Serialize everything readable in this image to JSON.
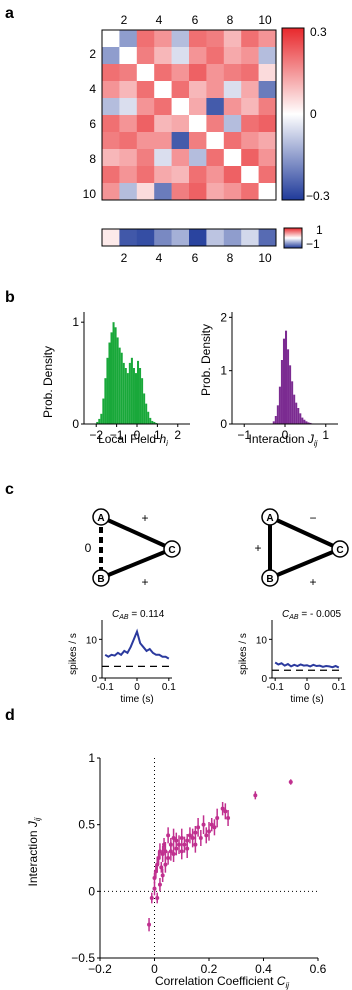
{
  "panels": {
    "a": {
      "label": "a",
      "matrix_col_ticks": [
        "2",
        "4",
        "6",
        "8",
        "10"
      ],
      "matrix_row_ticks": [
        "2",
        "4",
        "6",
        "8",
        "10"
      ],
      "colorbar_ticks": [
        "0.3",
        "0",
        "−0.3"
      ],
      "vector_ticks": [
        "2",
        "4",
        "6",
        "8",
        "10"
      ],
      "small_colorbar_ticks": [
        "1",
        "−1"
      ],
      "colors": {
        "pos": "#e8282c",
        "neg": "#1f3a9a",
        "mid": "#ffffff"
      }
    },
    "b": {
      "label": "b",
      "left": {
        "ylabel": "Prob. Density",
        "xlabel_main": "Local Field ",
        "xlabel_var": "h",
        "xlabel_sub": "i",
        "xticks": [
          "−2",
          "−1",
          "0",
          "1",
          "2"
        ],
        "yticks": [
          "1",
          "0"
        ],
        "color": "#19a83a"
      },
      "right": {
        "ylabel": "Prob. Density",
        "xlabel_main": "Interaction ",
        "xlabel_var": "J",
        "xlabel_sub": "ij",
        "xticks": [
          "−1",
          "0",
          "1"
        ],
        "yticks": [
          "2",
          "1",
          "0"
        ],
        "color": "#7b2b91"
      }
    },
    "c": {
      "label": "c",
      "left": {
        "node_a": "A",
        "node_b": "B",
        "node_c": "C",
        "ab_sign": "0",
        "ac_sign": "+",
        "bc_sign": "+",
        "annot_var": "C",
        "annot_sub": "AB",
        "annot_value": " = 0.114",
        "ylabel": "spikes / s",
        "xlabel": "time (s)",
        "xticks": [
          "-0.1",
          "0",
          "0.1"
        ],
        "yticks": [
          "10",
          "0"
        ]
      },
      "right": {
        "node_a": "A",
        "node_b": "B",
        "node_c": "C",
        "ab_sign": "+",
        "ac_sign": "−",
        "bc_sign": "+",
        "annot_var": "C",
        "annot_sub": "AB",
        "annot_value": " = - 0.005",
        "ylabel": "spikes / s",
        "xlabel": "time (s)",
        "xticks": [
          "-0.1",
          "0",
          "0.1"
        ],
        "yticks": [
          "10",
          "0"
        ]
      },
      "trace_color": "#2b3a9e"
    },
    "d": {
      "label": "d",
      "ylabel_main": "Interaction ",
      "ylabel_var": "J",
      "ylabel_sub": "ij",
      "xlabel_main": "Correlation Coefficient ",
      "xlabel_var": "C",
      "xlabel_sub": "ij",
      "xticks": [
        "−0.2",
        "0",
        "0.2",
        "0.4",
        "0.6"
      ],
      "yticks": [
        "1",
        "0.5",
        "0",
        "−0.5"
      ],
      "color": "#c0308f"
    }
  },
  "chart_data": [
    {
      "type": "heatmap",
      "panel": "a",
      "rows": 10,
      "cols": 10,
      "vmin": -0.3,
      "vmax": 0.3,
      "values": [
        [
          0,
          -0.15,
          0.2,
          0.15,
          -0.1,
          0.2,
          0.18,
          0.1,
          0.2,
          0.15
        ],
        [
          -0.15,
          0,
          0.18,
          0.1,
          -0.05,
          0.15,
          0.2,
          0.12,
          0.15,
          -0.1
        ],
        [
          0.2,
          0.18,
          0,
          0.2,
          0.15,
          0.22,
          0.15,
          0.18,
          0.2,
          0.05
        ],
        [
          0.15,
          0.1,
          0.2,
          0,
          0.2,
          0.1,
          0.15,
          -0.05,
          0.12,
          -0.2
        ],
        [
          -0.1,
          -0.05,
          0.15,
          0.2,
          0,
          0.12,
          -0.25,
          0.15,
          0.1,
          0.18
        ],
        [
          0.2,
          0.15,
          0.22,
          0.1,
          0.12,
          0,
          0.18,
          -0.1,
          0.2,
          0.22
        ],
        [
          0.18,
          0.2,
          0.15,
          0.15,
          -0.25,
          0.18,
          0,
          0.2,
          0.15,
          0.12
        ],
        [
          0.1,
          0.12,
          0.18,
          -0.05,
          0.15,
          -0.1,
          0.2,
          0,
          0.22,
          0.15
        ],
        [
          0.2,
          0.15,
          0.2,
          0.12,
          0.1,
          0.2,
          0.15,
          0.22,
          0,
          0.2
        ],
        [
          0.15,
          -0.1,
          0.05,
          -0.2,
          0.18,
          0.22,
          0.12,
          0.15,
          0.2,
          0
        ]
      ]
    },
    {
      "type": "heatmap",
      "panel": "a-vector",
      "rows": 1,
      "cols": 10,
      "vmin": -1,
      "vmax": 1,
      "values": [
        0.1,
        -0.85,
        -0.9,
        -0.6,
        -0.4,
        -0.95,
        -0.3,
        -0.5,
        -0.2,
        -0.75
      ]
    },
    {
      "type": "bar",
      "panel": "b-left",
      "xlim": [
        -2.6,
        2.6
      ],
      "ylim": [
        0,
        1.1
      ],
      "binwidth": 0.1,
      "x0": -2.0,
      "values": [
        0.02,
        0.05,
        0.1,
        0.25,
        0.45,
        0.65,
        0.8,
        0.9,
        1.0,
        0.95,
        0.85,
        0.75,
        0.7,
        0.6,
        0.55,
        0.5,
        0.6,
        0.65,
        0.55,
        0.5,
        0.62,
        0.55,
        0.45,
        0.3,
        0.2,
        0.12,
        0.06,
        0.03,
        0.02,
        0.01
      ]
    },
    {
      "type": "bar",
      "panel": "b-right",
      "xlim": [
        -1.3,
        1.3
      ],
      "ylim": [
        0,
        2.1
      ],
      "binwidth": 0.05,
      "x0": -0.3,
      "values": [
        0.05,
        0.15,
        0.35,
        0.7,
        1.2,
        1.6,
        1.75,
        1.4,
        1.1,
        0.8,
        0.55,
        0.4,
        0.3,
        0.2,
        0.12,
        0.08,
        0.05,
        0.03,
        0.02,
        0.01
      ]
    },
    {
      "type": "line",
      "panel": "c-left",
      "xlim": [
        -0.11,
        0.11
      ],
      "ylim": [
        0,
        15
      ],
      "baseline": 3,
      "x": [
        -0.1,
        -0.09,
        -0.08,
        -0.07,
        -0.06,
        -0.05,
        -0.04,
        -0.03,
        -0.02,
        -0.01,
        0,
        0.01,
        0.02,
        0.03,
        0.04,
        0.05,
        0.06,
        0.07,
        0.08,
        0.09,
        0.1
      ],
      "y": [
        6,
        5.5,
        6,
        5.8,
        6.5,
        6,
        7,
        6.5,
        8,
        10,
        12,
        9,
        8,
        7,
        7.5,
        6.5,
        6,
        6,
        5.5,
        5.5,
        5
      ]
    },
    {
      "type": "line",
      "panel": "c-right",
      "xlim": [
        -0.11,
        0.11
      ],
      "ylim": [
        0,
        15
      ],
      "baseline": 2,
      "x": [
        -0.1,
        -0.09,
        -0.08,
        -0.07,
        -0.06,
        -0.05,
        -0.04,
        -0.03,
        -0.02,
        -0.01,
        0,
        0.01,
        0.02,
        0.03,
        0.04,
        0.05,
        0.06,
        0.07,
        0.08,
        0.09,
        0.1
      ],
      "y": [
        4,
        3.5,
        3.8,
        3.2,
        3.6,
        3,
        3.4,
        3.1,
        3.5,
        3.2,
        3.3,
        3,
        3.4,
        3.1,
        3.2,
        2.9,
        3.1,
        3,
        2.8,
        3.1,
        2.7
      ]
    },
    {
      "type": "scatter",
      "panel": "d",
      "xlim": [
        -0.2,
        0.6
      ],
      "ylim": [
        -0.5,
        1
      ],
      "x": [
        -0.02,
        -0.01,
        0,
        0,
        0.005,
        0.01,
        0.01,
        0.015,
        0.02,
        0.02,
        0.025,
        0.03,
        0.03,
        0.035,
        0.04,
        0.04,
        0.05,
        0.05,
        0.06,
        0.06,
        0.07,
        0.07,
        0.08,
        0.08,
        0.09,
        0.1,
        0.1,
        0.11,
        0.12,
        0.12,
        0.13,
        0.14,
        0.15,
        0.15,
        0.16,
        0.17,
        0.18,
        0.19,
        0.2,
        0.21,
        0.22,
        0.23,
        0.25,
        0.26,
        0.27,
        0.37,
        0.5
      ],
      "y": [
        -0.25,
        -0.05,
        0.02,
        0.1,
        0.15,
        -0.05,
        0.2,
        0.25,
        0.05,
        0.3,
        0.18,
        0.12,
        0.28,
        0.35,
        0.2,
        0.3,
        0.25,
        0.42,
        0.3,
        0.35,
        0.28,
        0.4,
        0.32,
        0.38,
        0.35,
        0.3,
        0.4,
        0.35,
        0.38,
        0.32,
        0.42,
        0.4,
        0.35,
        0.44,
        0.48,
        0.4,
        0.5,
        0.42,
        0.45,
        0.5,
        0.48,
        0.55,
        0.62,
        0.6,
        0.55,
        0.72,
        0.82
      ],
      "err": [
        0.05,
        0.04,
        0.05,
        0.04,
        0.05,
        0.04,
        0.06,
        0.05,
        0.05,
        0.06,
        0.04,
        0.05,
        0.06,
        0.05,
        0.06,
        0.07,
        0.05,
        0.06,
        0.07,
        0.05,
        0.06,
        0.07,
        0.05,
        0.06,
        0.07,
        0.06,
        0.07,
        0.06,
        0.05,
        0.07,
        0.06,
        0.07,
        0.06,
        0.05,
        0.07,
        0.06,
        0.07,
        0.06,
        0.07,
        0.05,
        0.06,
        0.07,
        0.05,
        0.06,
        0.06,
        0.03,
        0.02
      ]
    }
  ]
}
